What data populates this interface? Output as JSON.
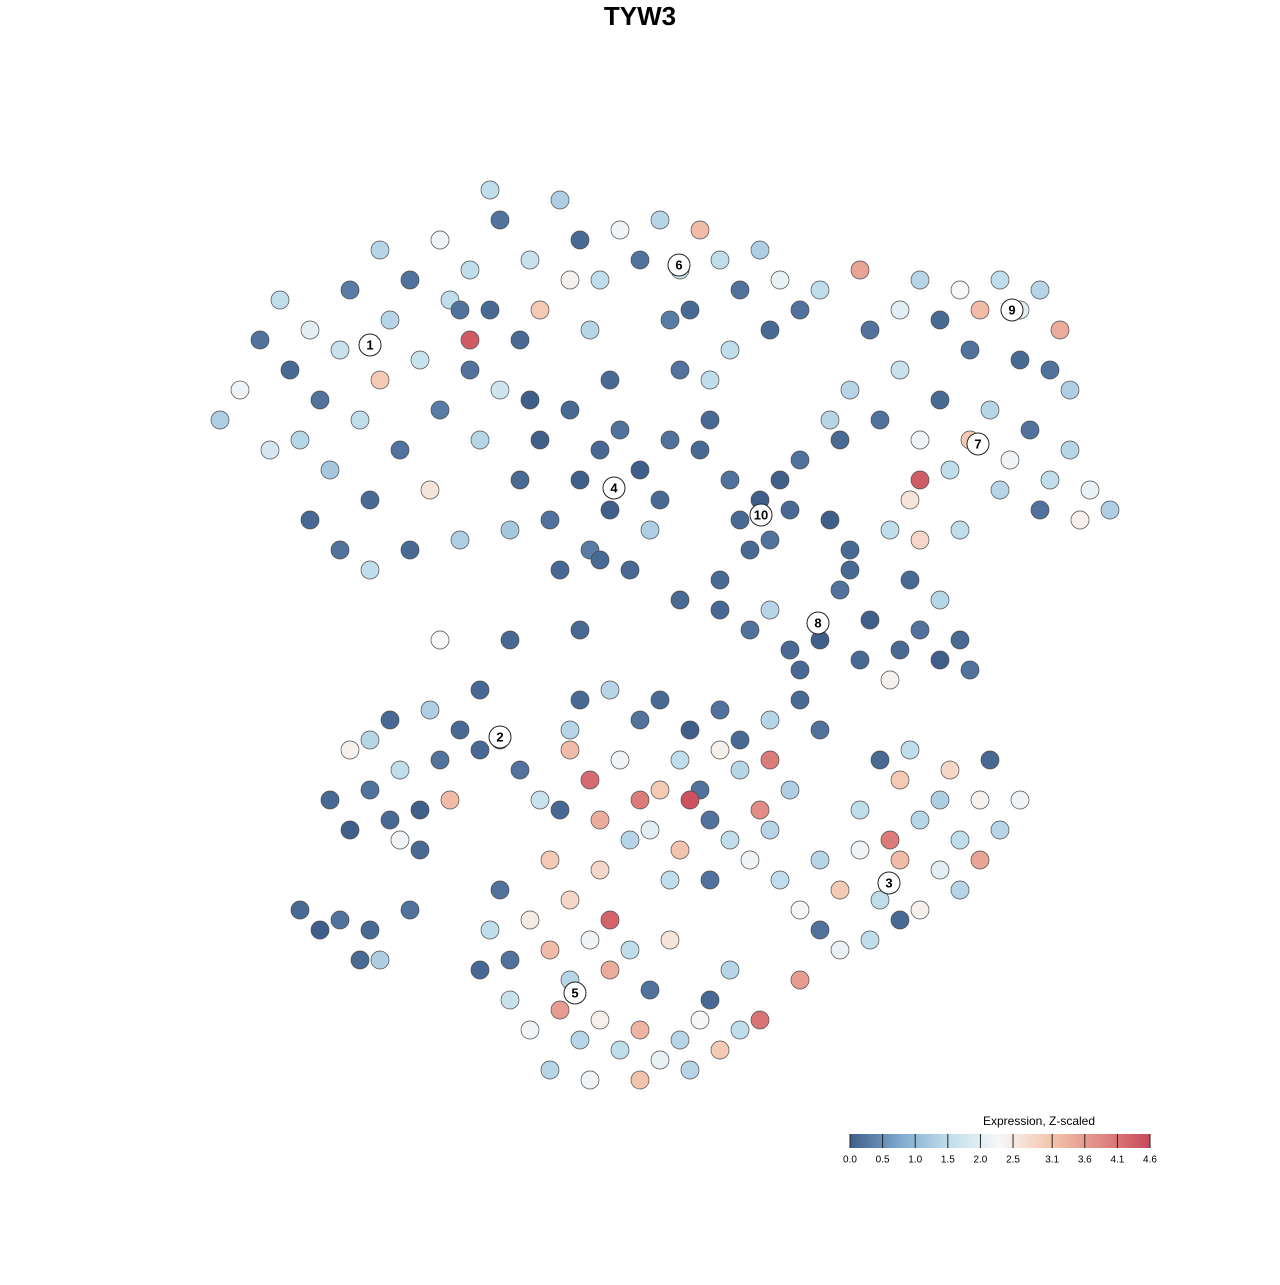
{
  "chart_data": {
    "type": "scatter",
    "title": "TYW3",
    "x": [
      -42,
      -40,
      -38,
      -36,
      -35,
      -34,
      -33,
      -32,
      -31,
      -30,
      -29,
      -28,
      -27,
      -26,
      -25,
      -24,
      -23,
      -22,
      -21,
      -20,
      -19,
      -18,
      -17,
      -16,
      -15,
      -14,
      -30,
      -27,
      -33,
      -37,
      -17,
      -26,
      -23,
      -20,
      -17,
      -14,
      -11,
      -10,
      -8,
      -6,
      -4,
      -2,
      0,
      2,
      4,
      5,
      6,
      8,
      10,
      12,
      14,
      16,
      18,
      -12,
      -5,
      3,
      9,
      13,
      -18,
      -15,
      -7,
      -12,
      -10,
      -9,
      -7,
      -6,
      -5,
      -4,
      -3,
      -2,
      -1,
      0,
      1,
      2,
      -13,
      -8,
      3,
      -11,
      6,
      9,
      7,
      -3,
      4,
      7,
      10,
      12,
      13,
      15,
      11,
      14,
      16,
      23,
      26,
      28,
      30,
      32,
      34,
      36,
      38,
      40,
      42,
      41,
      43,
      38,
      33,
      22,
      21,
      24,
      26,
      28,
      30,
      31,
      33,
      35,
      37,
      39,
      41,
      43,
      45,
      47,
      44,
      40,
      36,
      27,
      25,
      28,
      32,
      28,
      20,
      19,
      8,
      11,
      13,
      15,
      18,
      20,
      21,
      23,
      26,
      28,
      30,
      32,
      33,
      30,
      27,
      25,
      22,
      16,
      19,
      21,
      -20,
      -13,
      -6,
      -4,
      4,
      8,
      -6,
      -3,
      0,
      2,
      5,
      8,
      10,
      13,
      16,
      18,
      -7,
      -5,
      -2,
      0,
      2,
      4,
      6,
      8,
      10,
      13,
      15,
      -4,
      -1,
      1,
      4,
      7,
      9,
      11,
      13,
      5,
      -7,
      -8,
      12,
      -4,
      3,
      7,
      -31,
      -29,
      -27,
      -25,
      -24,
      -22,
      -20,
      -18,
      -16,
      -14,
      -12,
      -27,
      -29,
      -25,
      -21,
      -16,
      -24,
      -22,
      -19,
      -34,
      -32,
      -30,
      -27,
      -26,
      -28,
      -23,
      -10,
      -15,
      -13,
      -11,
      -9,
      -7,
      -5,
      -3,
      -1,
      1,
      3,
      -13,
      -11,
      -8,
      -6,
      -4,
      -2,
      0,
      2,
      4,
      6,
      8,
      10,
      12,
      -9,
      -5,
      0,
      5,
      -16,
      -14,
      -7,
      -3,
      7,
      9,
      -9,
      14,
      16,
      18,
      20,
      22,
      24,
      26,
      28,
      30,
      32,
      34,
      36,
      38,
      30,
      26,
      23,
      20,
      16,
      18,
      26,
      32,
      34,
      28,
      22,
      24,
      35,
      27,
      31,
      25
    ],
    "y": [
      22,
      25,
      30,
      34,
      27,
      20,
      31,
      24,
      17,
      29,
      35,
      22,
      14,
      26,
      32,
      19,
      9,
      28,
      15,
      23,
      34,
      10,
      27,
      20,
      33,
      25,
      9,
      7,
      12,
      19,
      30,
      39,
      36,
      40,
      37,
      42,
      38,
      33,
      44,
      40,
      36,
      41,
      38,
      42,
      37,
      33,
      41,
      38,
      35,
      39,
      36,
      33,
      35,
      30,
      31,
      32,
      29,
      31,
      33,
      45,
      36,
      16,
      20,
      12,
      23,
      16,
      9,
      19,
      13,
      21,
      7,
      17,
      11,
      14,
      11,
      7,
      20,
      24,
      19,
      16,
      22,
      26,
      27,
      26,
      12,
      14,
      10,
      13,
      9,
      16,
      18,
      31,
      33,
      36,
      32,
      35,
      33,
      36,
      33,
      35,
      31,
      27,
      25,
      28,
      29,
      37,
      25,
      22,
      27,
      20,
      24,
      17,
      20,
      23,
      18,
      21,
      16,
      19,
      15,
      13,
      12,
      13,
      15,
      14,
      11,
      10,
      11,
      16,
      20,
      22,
      3,
      1,
      3,
      -1,
      0,
      5,
      9,
      2,
      -1,
      1,
      -2,
      0,
      -3,
      4,
      6,
      -4,
      -2,
      -3,
      12,
      7,
      0,
      0,
      1,
      8,
      4,
      6,
      -6,
      -5,
      -8,
      -6,
      -9,
      -7,
      -10,
      -8,
      -6,
      -9,
      -11,
      -14,
      -12,
      -16,
      -15,
      -12,
      -15,
      -11,
      -13,
      -12,
      -15,
      -18,
      -20,
      -19,
      -21,
      -18,
      -20,
      -22,
      -19,
      -16,
      -9,
      -17,
      -17,
      -23,
      -24,
      -24,
      -16,
      -19,
      -15,
      -18,
      -13,
      -17,
      -12,
      -9,
      -11,
      -10,
      -13,
      -10,
      -11,
      -8,
      -7,
      -5,
      -20,
      -21,
      -16,
      -27,
      -29,
      -28,
      -29,
      -32,
      -32,
      -27,
      -16,
      -29,
      -32,
      -28,
      -31,
      -34,
      -30,
      -33,
      -31,
      -35,
      -30,
      -36,
      -39,
      -37,
      -40,
      -38,
      -41,
      -39,
      -42,
      -40,
      -38,
      -41,
      -39,
      -38,
      -43,
      -44,
      -44,
      -43,
      -33,
      -25,
      -26,
      -28,
      -36,
      -33,
      -22,
      -24,
      -27,
      -22,
      -25,
      -21,
      -26,
      -22,
      -18,
      -23,
      -20,
      -16,
      -19,
      -16,
      -16,
      -28,
      -30,
      -31,
      -34,
      -29,
      -14,
      -25,
      -22,
      -27,
      -17,
      -12,
      -12,
      -11,
      -13,
      -20
    ],
    "values": [
      1.3,
      2.2,
      0.2,
      1.5,
      0.1,
      1.4,
      2.0,
      0.2,
      1.2,
      1.6,
      0.3,
      1.5,
      0.1,
      3.0,
      1.4,
      0.2,
      0.1,
      1.6,
      2.6,
      0.3,
      1.5,
      1.3,
      0.2,
      1.4,
      0.1,
      1.7,
      0.2,
      1.5,
      0.1,
      1.8,
      4.4,
      1.4,
      0.2,
      2.2,
      1.5,
      0.2,
      1.6,
      3.0,
      1.3,
      0.1,
      1.5,
      2.2,
      0.2,
      1.4,
      1.6,
      0.1,
      3.2,
      1.5,
      0.2,
      1.3,
      2.1,
      0.2,
      1.5,
      0.1,
      1.4,
      0.3,
      1.5,
      0.1,
      0.2,
      1.5,
      2.4,
      0.1,
      0.0,
      0.2,
      0.1,
      0.0,
      0.3,
      0.1,
      0.0,
      0.2,
      0.1,
      0.0,
      1.3,
      0.1,
      1.2,
      0.1,
      0.2,
      0.0,
      0.1,
      0.2,
      0.1,
      0.1,
      0.2,
      1.5,
      0.1,
      0.0,
      0.2,
      0.1,
      0.1,
      0.0,
      0.2,
      0.2,
      2.0,
      1.4,
      0.1,
      2.3,
      3.2,
      1.5,
      2.0,
      1.4,
      3.4,
      0.2,
      1.3,
      0.1,
      0.2,
      3.5,
      1.4,
      0.2,
      1.6,
      2.2,
      0.1,
      1.5,
      3.0,
      1.4,
      2.2,
      0.2,
      1.5,
      1.4,
      2.1,
      1.3,
      2.4,
      0.2,
      1.4,
      2.6,
      1.5,
      2.8,
      1.5,
      4.4,
      0.1,
      1.4,
      0.1,
      0.2,
      1.4,
      0.1,
      0.0,
      0.2,
      0.1,
      0.0,
      0.1,
      0.2,
      0.0,
      0.1,
      0.2,
      1.4,
      0.1,
      2.4,
      0.1,
      0.1,
      0.0,
      0.1,
      2.3,
      0.1,
      0.1,
      0.1,
      0.1,
      0.1,
      0.1,
      1.4,
      0.2,
      0.1,
      0.0,
      0.2,
      0.1,
      1.4,
      0.1,
      0.2,
      3.2,
      4.2,
      2.2,
      4.0,
      3.0,
      1.5,
      0.2,
      2.4,
      1.4,
      4.0,
      1.3,
      3.4,
      1.4,
      2.0,
      3.1,
      0.2,
      1.5,
      2.2,
      1.4,
      4.5,
      1.4,
      0.1,
      3.8,
      2.8,
      1.5,
      0.2,
      0.1,
      0.0,
      0.2,
      0.1,
      1.5,
      0.0,
      0.2,
      0.1,
      0.1,
      0.0,
      0.2,
      1.4,
      2.4,
      0.1,
      1.3,
      0.1,
      2.2,
      0.1,
      3.2,
      0.1,
      0.0,
      0.2,
      0.1,
      1.3,
      0.1,
      0.2,
      1.6,
      1.5,
      0.2,
      2.5,
      3.2,
      1.4,
      2.2,
      3.4,
      1.5,
      0.2,
      2.6,
      1.6,
      2.2,
      3.6,
      1.4,
      2.4,
      1.5,
      3.3,
      2.1,
      1.4,
      2.3,
      3.0,
      1.5,
      4.1,
      1.4,
      2.2,
      3.1,
      1.4,
      0.1,
      0.2,
      2.8,
      4.3,
      0.1,
      1.4,
      3.0,
      1.5,
      2.3,
      1.4,
      3.0,
      2.2,
      1.5,
      3.2,
      1.4,
      2.0,
      1.5,
      2.4,
      1.4,
      2.2,
      1.3,
      0.1,
      1.5,
      2.1,
      3.6,
      0.2,
      3.0,
      1.4,
      3.5,
      2.4,
      1.5,
      0.1,
      0.1,
      1.5,
      2.8,
      4.0
    ],
    "xlim": [
      -45,
      50
    ],
    "ylim": [
      -46,
      46
    ],
    "cluster_labels": [
      {
        "text": "1",
        "x": -27,
        "y": 29.5
      },
      {
        "text": "2",
        "x": -14,
        "y": -9.7
      },
      {
        "text": "3",
        "x": 24.9,
        "y": -24.3
      },
      {
        "text": "4",
        "x": -2.6,
        "y": 15.2
      },
      {
        "text": "5",
        "x": -6.5,
        "y": -35.3
      },
      {
        "text": "6",
        "x": 3.9,
        "y": 37.5
      },
      {
        "text": "7",
        "x": 33.8,
        "y": 19.6
      },
      {
        "text": "8",
        "x": 17.8,
        "y": 1.7
      },
      {
        "text": "9",
        "x": 37.2,
        "y": 33
      },
      {
        "text": "10",
        "x": 12.1,
        "y": 12.5
      }
    ],
    "colorbar_title": "Expression, Z-scaled",
    "clim": [
      0,
      4.6
    ],
    "cticks": [
      {
        "value": 0,
        "label": "0.0"
      },
      0.5,
      {
        "value": 1,
        "label": "1.0"
      },
      1.5,
      {
        "value": 2,
        "label": "2.0"
      },
      2.5,
      3.1,
      3.6,
      4.1,
      4.6
    ],
    "colorscale": [
      "#3f5f8a",
      "#7fa9cf",
      "#c2dfec",
      "#f7f7f7",
      "#f5c6ae",
      "#e08a84",
      "#c94a5a"
    ],
    "legend": "bottom-right"
  }
}
